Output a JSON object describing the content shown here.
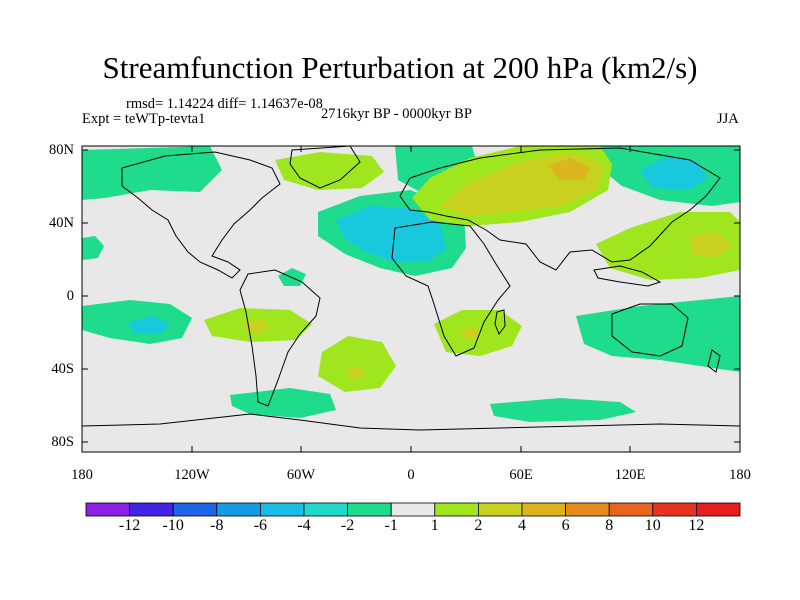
{
  "title": "Streamfunction Perturbation at 200 hPa (km2/s)",
  "stats": "rmsd= 1.14224 diff= 1.14637e-08",
  "period": "2716kyr BP - 0000kyr BP",
  "experiment": "Expt = teWTp-tevta1",
  "season": "JJA",
  "lat_ticks": [
    "80N",
    "40N",
    "0",
    "40S",
    "80S"
  ],
  "lon_ticks": [
    "180",
    "120W",
    "60W",
    "0",
    "60E",
    "120E",
    "180"
  ],
  "colorbar": {
    "labels": [
      "-12",
      "-10",
      "-8",
      "-6",
      "-4",
      "-2",
      "-1",
      "1",
      "2",
      "4",
      "6",
      "8",
      "10",
      "12"
    ],
    "colors": [
      "#8c1ee8",
      "#4324e6",
      "#1e64e6",
      "#149be6",
      "#18bde6",
      "#1ed8c8",
      "#1edc8c",
      "#e8e8e8",
      "#a0e61e",
      "#c8d21e",
      "#dcb41e",
      "#e68c1e",
      "#e6641e",
      "#e6321e",
      "#e61e1e"
    ]
  },
  "field_colors": {
    "background": "#e8e8e8",
    "neg1": "#1edc8c",
    "neg2": "#18c8dc",
    "pos1": "#a0e61e",
    "pos2": "#c8d21e",
    "pos3": "#dcb41e"
  }
}
